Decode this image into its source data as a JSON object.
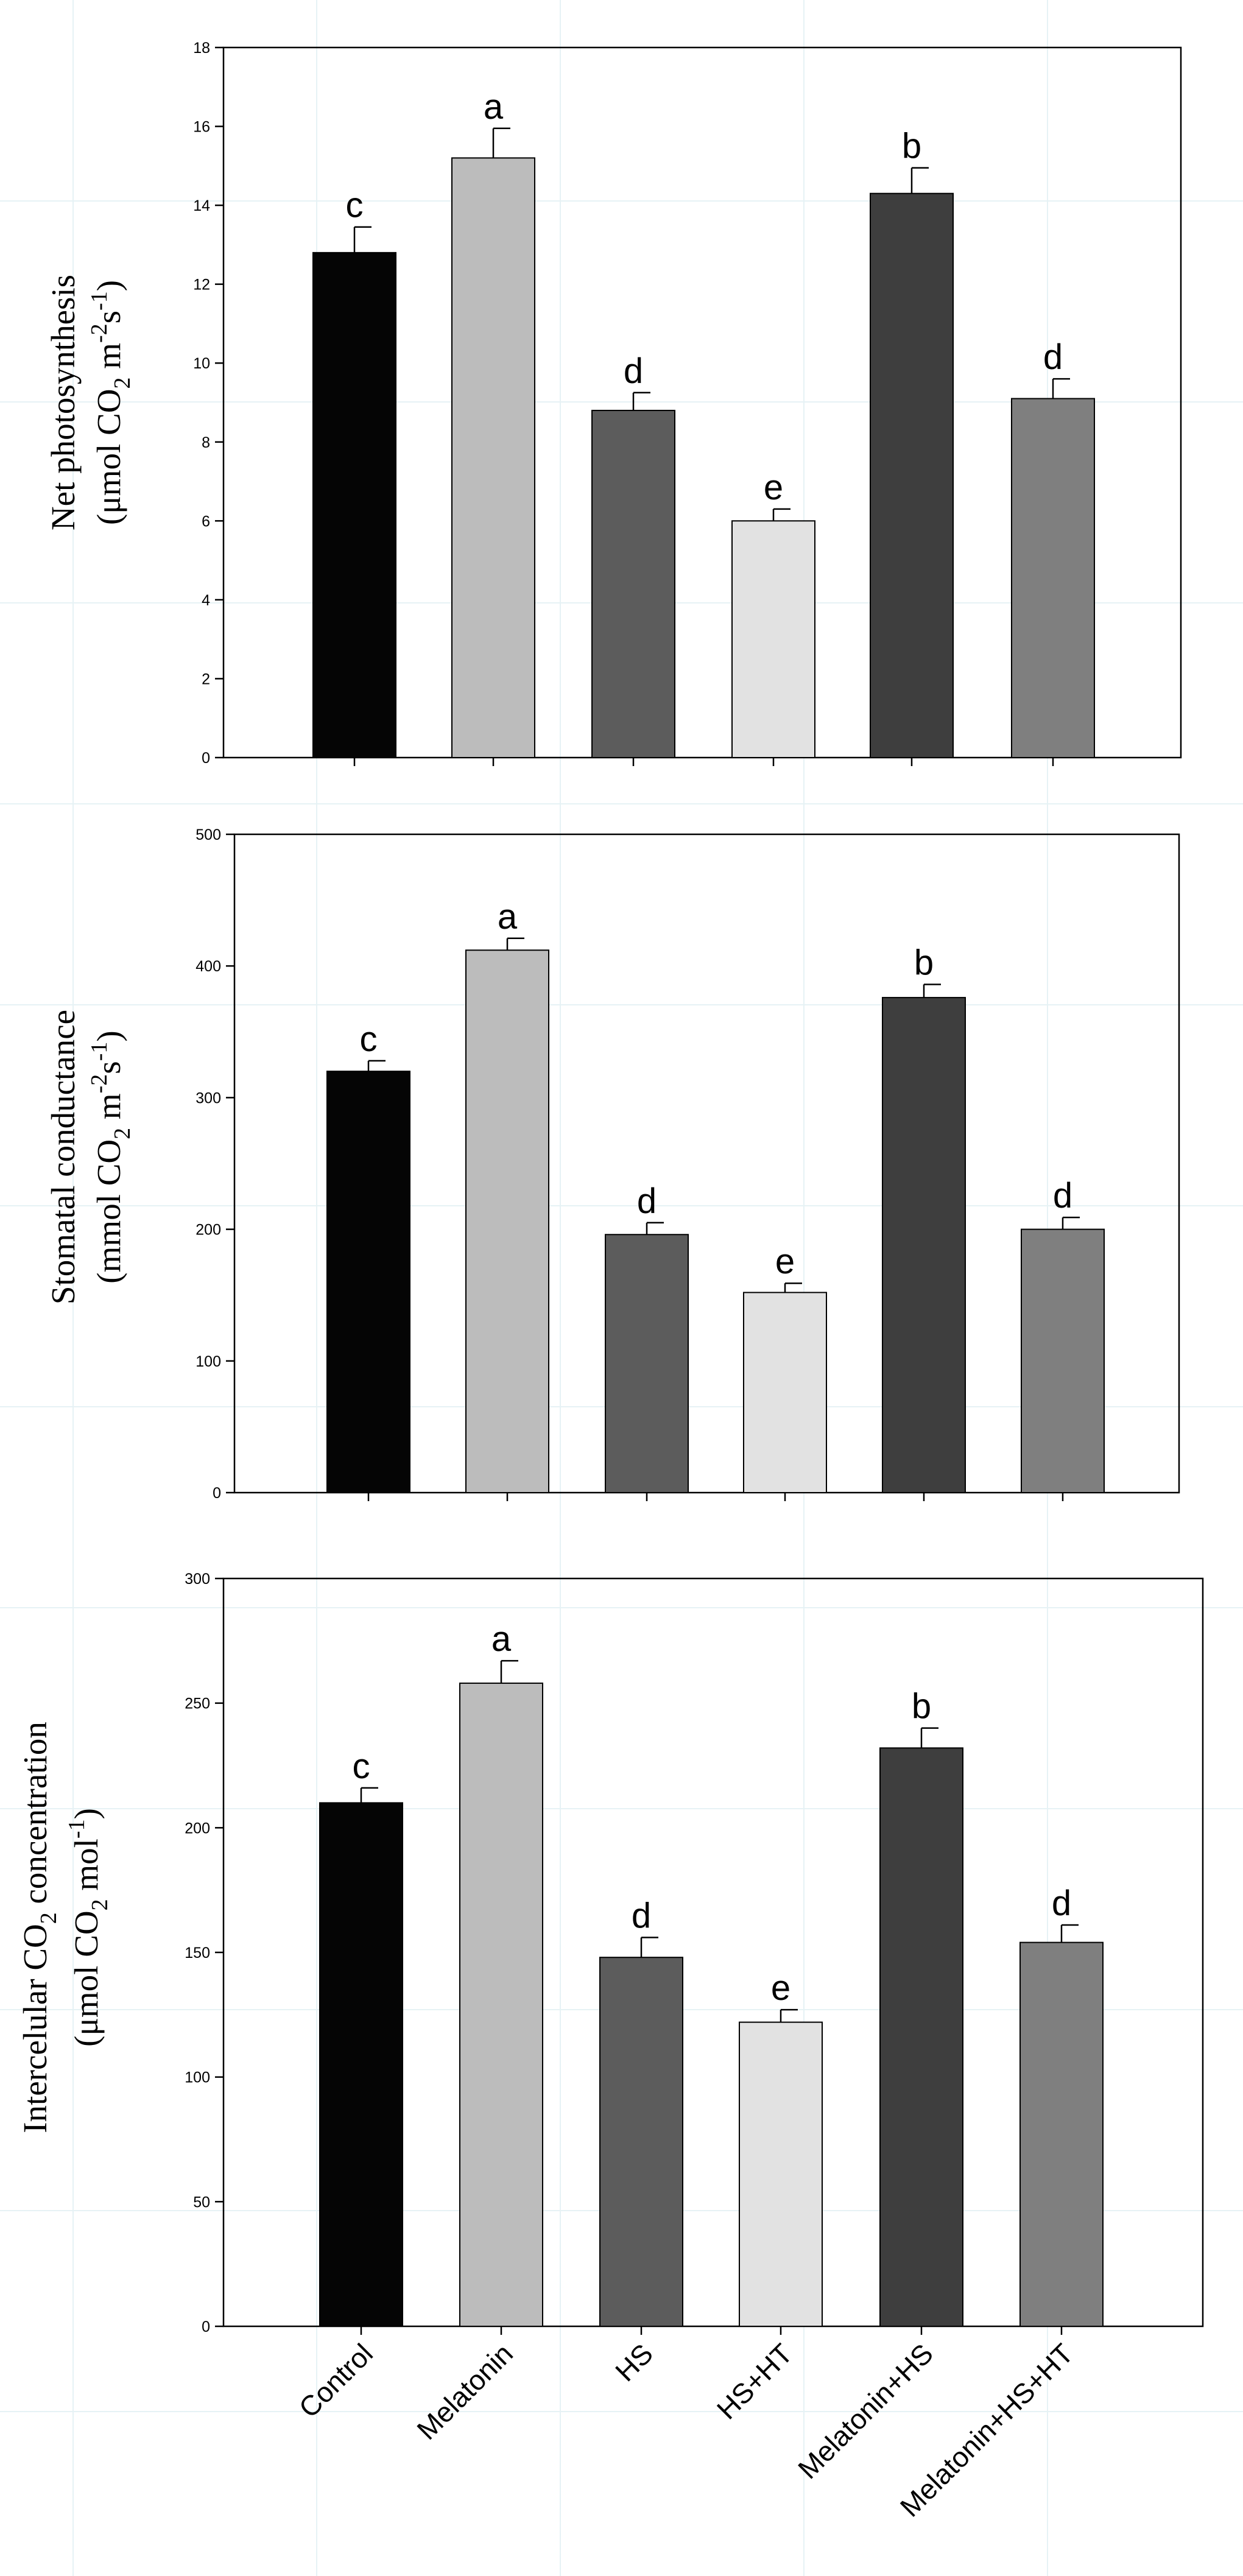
{
  "chart_data": [
    {
      "type": "bar",
      "panel": "top",
      "categories": [
        "Control",
        "Melatonin",
        "HS",
        "HS+HT",
        "Melatonin+HS",
        "Melatonin+HS+HT"
      ],
      "values": [
        12.8,
        15.2,
        8.8,
        6.0,
        14.3,
        9.1
      ],
      "errors": [
        0.65,
        0.75,
        0.45,
        0.3,
        0.65,
        0.5
      ],
      "significance": [
        "c",
        "a",
        "d",
        "e",
        "b",
        "d"
      ],
      "colors": [
        "#050505",
        "#bcbcbc",
        "#5c5c5c",
        "#e2e2e2",
        "#3e3e3e",
        "#7f7f7f"
      ],
      "ylabel_line1": "Net photosynthesis",
      "ylabel_line2_parts": [
        "(μmol CO",
        "2",
        " m",
        "-2",
        "s",
        "-1",
        ")"
      ],
      "ylim": [
        0,
        18
      ],
      "yticks": [
        0,
        2,
        4,
        6,
        8,
        10,
        12,
        14,
        16,
        18
      ],
      "xlabel": "",
      "grid": false
    },
    {
      "type": "bar",
      "panel": "middle",
      "categories": [
        "Control",
        "Melatonin",
        "HS",
        "HS+HT",
        "Melatonin+HS",
        "Melatonin+HS+HT"
      ],
      "values": [
        320,
        412,
        196,
        152,
        376,
        200
      ],
      "errors": [
        8,
        9,
        9,
        7,
        10,
        9
      ],
      "significance": [
        "c",
        "a",
        "d",
        "e",
        "b",
        "d"
      ],
      "colors": [
        "#050505",
        "#bcbcbc",
        "#5c5c5c",
        "#e2e2e2",
        "#3e3e3e",
        "#7f7f7f"
      ],
      "ylabel_line1": "Stomatal conductance",
      "ylabel_line2_parts": [
        "(mmol CO",
        "2",
        " m",
        "-2",
        "s",
        "-1",
        ")"
      ],
      "ylim": [
        0,
        500
      ],
      "yticks": [
        0,
        100,
        200,
        300,
        400,
        500
      ],
      "xlabel": "",
      "grid": false
    },
    {
      "type": "bar",
      "panel": "bottom",
      "categories": [
        "Control",
        "Melatonin",
        "HS",
        "HS+HT",
        "Melatonin+HS",
        "Melatonin+HS+HT"
      ],
      "values": [
        210,
        258,
        148,
        122,
        232,
        154
      ],
      "errors": [
        6,
        9,
        8,
        5,
        8,
        7
      ],
      "significance": [
        "c",
        "a",
        "d",
        "e",
        "b",
        "d"
      ],
      "colors": [
        "#050505",
        "#bcbcbc",
        "#5c5c5c",
        "#e2e2e2",
        "#3e3e3e",
        "#7f7f7f"
      ],
      "ylabel_line1_parts": [
        "Intercelular CO",
        "2",
        " concentration"
      ],
      "ylabel_line2_parts": [
        "(μmol CO",
        "2",
        " mol",
        "-1",
        ")"
      ],
      "ylim": [
        0,
        300
      ],
      "yticks": [
        0,
        50,
        100,
        150,
        200,
        250,
        300
      ],
      "xlabel": "",
      "grid": false
    }
  ]
}
